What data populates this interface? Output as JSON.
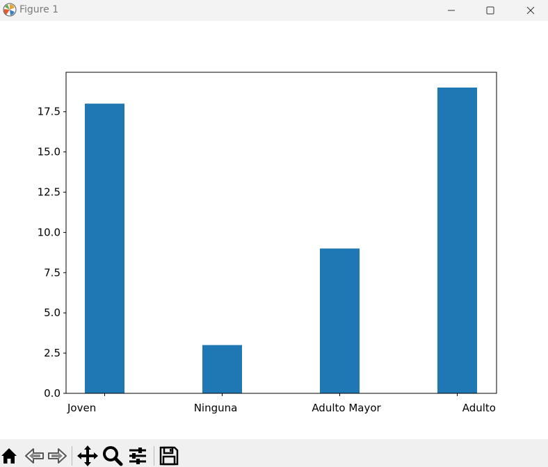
{
  "window": {
    "title": "Figure 1",
    "icon": "matplotlib-logo-icon",
    "controls": [
      "minimize-icon",
      "maximize-icon",
      "close-icon"
    ]
  },
  "toolbar": {
    "buttons": [
      "home-icon",
      "back-arrow-icon",
      "forward-arrow-icon",
      "pan-move-icon",
      "zoom-magnifier-icon",
      "configure-subplots-icon",
      "save-disk-icon"
    ]
  },
  "chart_data": {
    "type": "bar",
    "title": "",
    "xlabel": "",
    "ylabel": "",
    "categories": [
      "Joven",
      "Ninguna",
      "Adulto Mayor",
      "Adulto"
    ],
    "values": [
      18,
      3,
      9,
      19
    ],
    "ylim": [
      0,
      19.95
    ],
    "yticks": [
      "0.0",
      "2.5",
      "5.0",
      "7.5",
      "10.0",
      "12.5",
      "15.0",
      "17.5"
    ],
    "ytick_values": [
      0,
      2.5,
      5,
      7.5,
      10,
      12.5,
      15,
      17.5
    ],
    "bar_color": "#1f77b4",
    "grid": false,
    "legend": "none"
  }
}
